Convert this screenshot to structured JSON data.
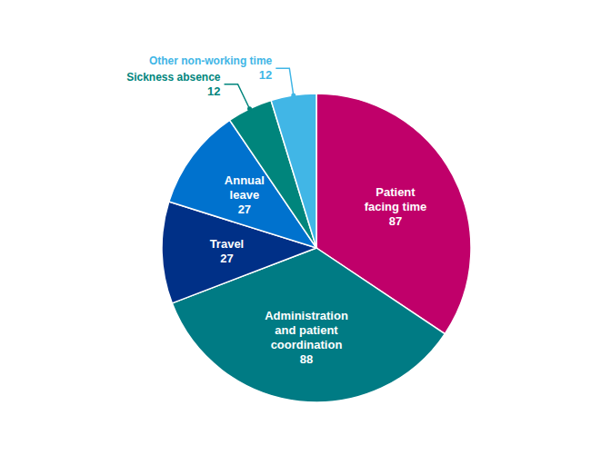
{
  "chart_data": {
    "type": "pie",
    "categories": [
      "Patient\nfacing time",
      "Administration\nand patient\ncoordination",
      "Travel",
      "Annual\nleave",
      "Sickness absence",
      "Other non-working time"
    ],
    "values": [
      87,
      88,
      27,
      27,
      12,
      12
    ],
    "colors": [
      "#C0006A",
      "#007B84",
      "#003087",
      "#0072CE",
      "#00857C",
      "#41B6E6"
    ],
    "data_labels": true
  }
}
